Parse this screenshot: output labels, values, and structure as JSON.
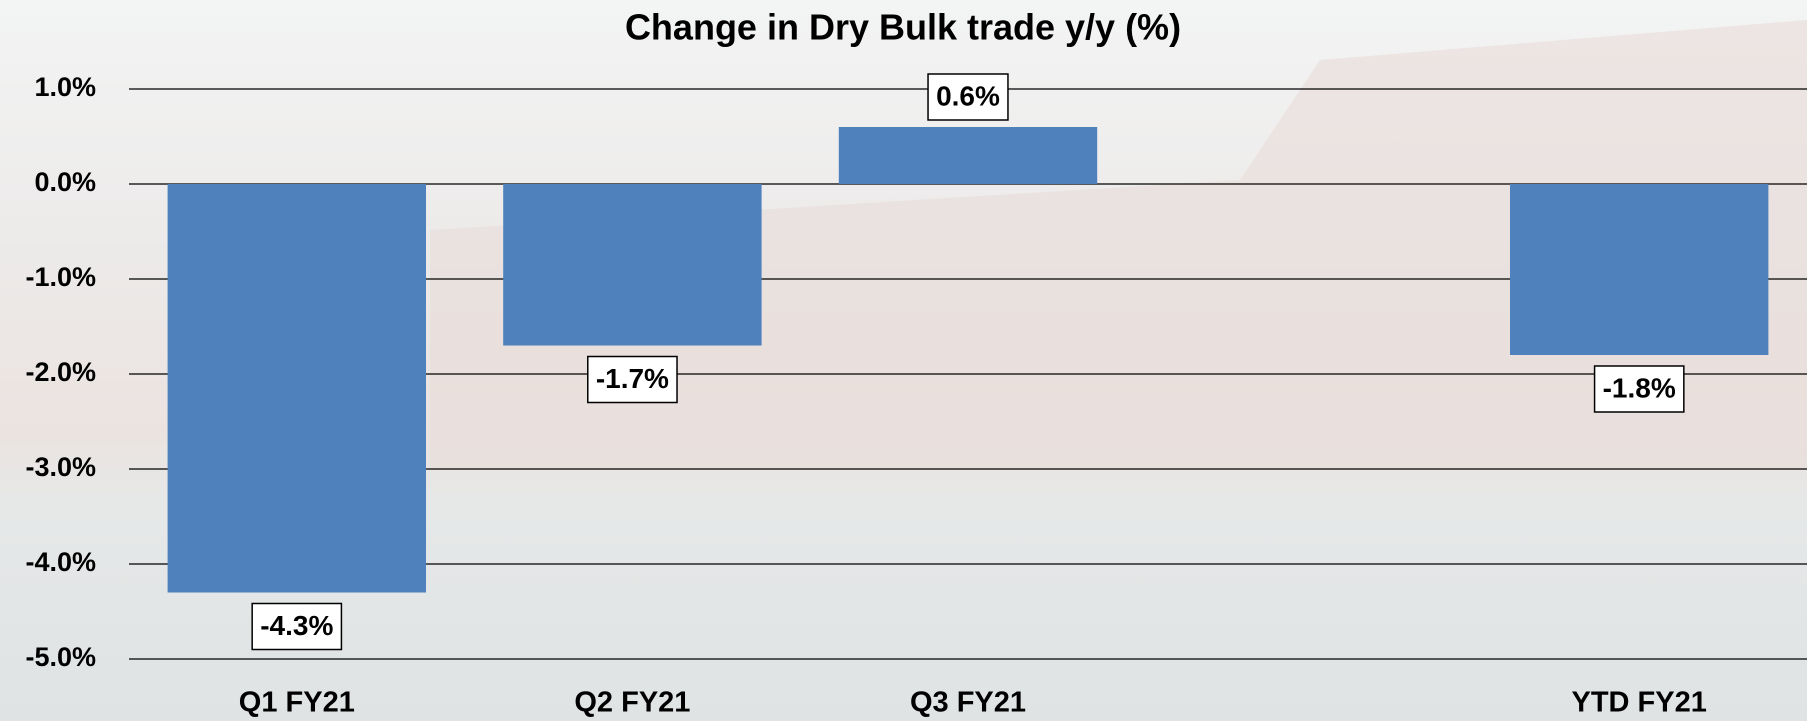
{
  "chart_data": {
    "type": "bar",
    "title": "Change in Dry Bulk trade y/y (%)",
    "categories": [
      "Q1 FY21",
      "Q2 FY21",
      "Q3 FY21",
      null,
      "YTD FY21"
    ],
    "values": [
      -4.3,
      -1.7,
      0.6,
      null,
      -1.8
    ],
    "value_labels": [
      "-4.3%",
      "-1.7%",
      "0.6%",
      null,
      "-1.8%"
    ],
    "color": "#4f81bd",
    "ylim": [
      -5,
      1
    ],
    "yticks": [
      {
        "value": 1,
        "label": "1.0%"
      },
      {
        "value": 0,
        "label": "0.0%"
      },
      {
        "value": -1,
        "label": "-1.0%"
      },
      {
        "value": -2,
        "label": "-2.0%"
      },
      {
        "value": -3,
        "label": "-3.0%"
      },
      {
        "value": -4,
        "label": "-4.0%"
      },
      {
        "value": -5,
        "label": "-5.0%"
      }
    ],
    "grid": true
  }
}
